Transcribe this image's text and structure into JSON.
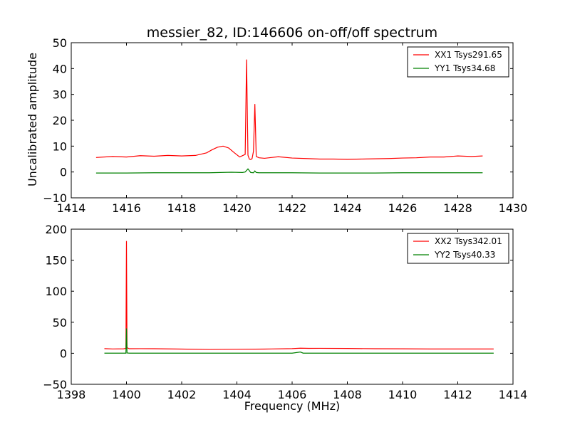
{
  "chart_data": [
    {
      "type": "line",
      "title": "messier_82, ID:146606 on-off/off spectrum",
      "xlabel": "",
      "ylabel": "Uncalibrated amplitude",
      "xlim": [
        1414,
        1430
      ],
      "ylim": [
        -10,
        50
      ],
      "xticks": [
        1414,
        1416,
        1418,
        1420,
        1422,
        1424,
        1426,
        1428,
        1430
      ],
      "yticks": [
        -10,
        0,
        10,
        20,
        30,
        40,
        50
      ],
      "legend_position": "top-right",
      "series": [
        {
          "name": "XX1 Tsys291.65",
          "color": "#ff0000",
          "x": [
            1414.9,
            1415.5,
            1416.0,
            1416.5,
            1417.0,
            1417.5,
            1418.0,
            1418.5,
            1418.9,
            1419.1,
            1419.3,
            1419.5,
            1419.7,
            1419.9,
            1420.1,
            1420.3,
            1420.35,
            1420.4,
            1420.45,
            1420.5,
            1420.55,
            1420.6,
            1420.65,
            1420.7,
            1420.8,
            1421.0,
            1421.5,
            1422.0,
            1422.5,
            1423.0,
            1423.5,
            1424.0,
            1424.5,
            1425.0,
            1425.5,
            1426.0,
            1426.5,
            1427.0,
            1427.5,
            1428.0,
            1428.5,
            1428.9
          ],
          "values": [
            5.6,
            6.0,
            5.8,
            6.3,
            6.1,
            6.4,
            6.2,
            6.4,
            7.4,
            8.6,
            9.6,
            10.0,
            9.3,
            7.5,
            5.8,
            6.8,
            43.5,
            6.5,
            5.0,
            4.8,
            5.2,
            8.0,
            26.3,
            6.0,
            5.5,
            5.3,
            5.9,
            5.4,
            5.2,
            5.0,
            5.0,
            4.9,
            5.0,
            5.1,
            5.2,
            5.4,
            5.5,
            5.8,
            5.8,
            6.2,
            6.0,
            6.2
          ]
        },
        {
          "name": "YY1 Tsys34.68",
          "color": "#008000",
          "x": [
            1414.9,
            1416.0,
            1417.0,
            1418.0,
            1419.0,
            1419.8,
            1420.2,
            1420.3,
            1420.4,
            1420.5,
            1420.6,
            1420.65,
            1420.7,
            1420.8,
            1421.0,
            1422.0,
            1423.0,
            1424.0,
            1425.0,
            1426.0,
            1427.0,
            1428.0,
            1428.9
          ],
          "values": [
            -0.4,
            -0.4,
            -0.3,
            -0.3,
            -0.3,
            -0.1,
            -0.2,
            0.0,
            1.2,
            -0.2,
            -0.3,
            0.4,
            -0.2,
            -0.3,
            -0.3,
            -0.3,
            -0.4,
            -0.4,
            -0.4,
            -0.3,
            -0.3,
            -0.3,
            -0.3
          ]
        }
      ]
    },
    {
      "type": "line",
      "title": "",
      "xlabel": "Frequency (MHz)",
      "ylabel": "",
      "xlim": [
        1398,
        1414
      ],
      "ylim": [
        -50,
        200
      ],
      "xticks": [
        1398,
        1400,
        1402,
        1404,
        1406,
        1408,
        1410,
        1412,
        1414
      ],
      "yticks": [
        -50,
        0,
        50,
        100,
        150,
        200
      ],
      "legend_position": "top-right",
      "series": [
        {
          "name": "XX2 Tsys342.01",
          "color": "#ff0000",
          "x": [
            1399.2,
            1399.5,
            1399.9,
            1399.98,
            1400.0,
            1400.02,
            1400.1,
            1400.5,
            1401.0,
            1402.0,
            1403.0,
            1404.0,
            1405.0,
            1406.0,
            1406.3,
            1406.6,
            1407.0,
            1408.0,
            1409.0,
            1410.0,
            1411.0,
            1412.0,
            1413.3
          ],
          "values": [
            7.5,
            7.0,
            7.2,
            8.0,
            181.0,
            9.0,
            7.3,
            7.4,
            7.3,
            6.8,
            6.1,
            6.4,
            6.8,
            7.5,
            8.2,
            7.9,
            8.0,
            7.8,
            7.3,
            7.2,
            6.9,
            6.9,
            6.9
          ]
        },
        {
          "name": "YY2 Tsys40.33",
          "color": "#008000",
          "x": [
            1399.2,
            1399.9,
            1399.98,
            1400.0,
            1400.02,
            1400.1,
            1402.0,
            1404.0,
            1406.0,
            1406.3,
            1406.4,
            1408.0,
            1410.0,
            1412.0,
            1413.3
          ],
          "values": [
            0.2,
            0.2,
            0.2,
            40.0,
            0.5,
            0.2,
            0.2,
            0.2,
            0.2,
            2.0,
            0.2,
            0.2,
            0.2,
            0.2,
            0.2
          ]
        }
      ]
    }
  ]
}
